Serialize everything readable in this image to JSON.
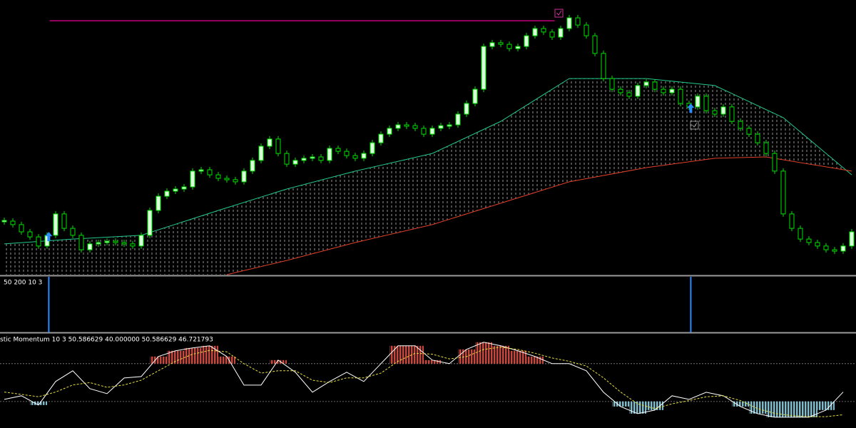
{
  "chart_data": [
    {
      "type": "candlestick",
      "values": [
        20,
        18.7,
        16,
        14.1,
        10.7,
        14.7,
        22.7,
        17.3,
        14.7,
        9.3,
        11.5,
        12,
        12.5,
        12,
        11.5,
        10.7,
        14.7,
        24,
        29.3,
        31.2,
        32,
        32.8,
        38.7,
        39.2,
        37.3,
        36,
        35.5,
        34.7,
        38.7,
        42.7,
        48,
        50.7,
        45.3,
        41.3,
        42.7,
        43.5,
        44,
        42.7,
        47.2,
        46.1,
        44.5,
        43.5,
        45.3,
        49.3,
        52.5,
        54.7,
        56,
        55.7,
        54.7,
        52.5,
        54.7,
        55.7,
        56,
        60,
        64,
        69.3,
        85.3,
        86.7,
        86.1,
        84.5,
        85.3,
        89.3,
        92,
        90.7,
        88.8,
        92,
        96,
        93.3,
        89.3,
        82.7,
        73.3,
        69.3,
        68,
        66.7,
        70.7,
        72,
        69.3,
        68,
        69.3,
        64,
        62.7,
        66.7,
        61.3,
        60,
        62.7,
        57.3,
        54.7,
        52.5,
        49.3,
        45.3,
        38.7,
        22.7,
        17.3,
        13.3,
        12,
        10.7,
        9.3,
        8.8,
        10.7,
        16
      ],
      "up_color": "#d8ffd8",
      "down_color": "#00e000",
      "ylim": [
        0,
        100
      ],
      "lines": [
        {
          "color": "#22c88a",
          "x": [
            0,
            8,
            16,
            25,
            33,
            41,
            50,
            58,
            66,
            75,
            83,
            91,
            99
          ],
          "values": [
            11.5,
            13.3,
            14.7,
            24,
            32,
            38.7,
            45.3,
            57.3,
            73.3,
            73.3,
            70.7,
            58.7,
            37.3
          ]
        },
        {
          "color": "#e0402a",
          "x": [
            26,
            33,
            41,
            50,
            58,
            66,
            75,
            83,
            89,
            99
          ],
          "values": [
            0,
            5.3,
            12,
            18.7,
            26.7,
            34.7,
            40,
            43.5,
            44,
            38.7
          ]
        }
      ],
      "hline": {
        "value": 94.9,
        "x": [
          5.3,
          64.3
        ],
        "color": "#c0007a"
      },
      "arrows": {
        "x": [
          5.2,
          80.2
        ],
        "values": [
          14.1,
          62.1
        ],
        "color": "#2a8cff"
      }
    },
    {
      "type": "signal",
      "title": "50 200 10 3",
      "x": [
        5.2,
        80.2
      ],
      "color": "#2a8cff"
    },
    {
      "type": "momentum",
      "title": "stic Momentum  10 3 50.586629 40.000000 50.586629 46.721793",
      "ylim": [
        -96,
        100
      ],
      "levels": [
        40,
        -40
      ],
      "upper_color": "#c8463c",
      "lower_color": "#7fbccc",
      "x": [
        0,
        2,
        4,
        6,
        8,
        10,
        12,
        14,
        16,
        18,
        20,
        22,
        24,
        26,
        28,
        30,
        32,
        34,
        36,
        38,
        40,
        42,
        44,
        46,
        48,
        50,
        52,
        54,
        56,
        58,
        60,
        62,
        64,
        66,
        68,
        70,
        72,
        74,
        76,
        78,
        80,
        82,
        84,
        86,
        88,
        90,
        92,
        94,
        96,
        98
      ],
      "series": [
        {
          "color": "#ffffff",
          "values": [
            -35.5,
            -27.9,
            -47.5,
            2.3,
            24.9,
            -12.8,
            -23.4,
            9.8,
            12.8,
            55.1,
            67.2,
            73.2,
            77.7,
            55.1,
            -5.3,
            -5.3,
            47.5,
            21.9,
            -20.4,
            2.3,
            21.9,
            2.3,
            40,
            77.7,
            77.7,
            47.5,
            40,
            70.2,
            85.3,
            77.7,
            67.2,
            55.1,
            40,
            40,
            24.9,
            -20.4,
            -50.6,
            -65.7,
            -58.1,
            -27.9,
            -35.5,
            -20.4,
            -27.9,
            -50.6,
            -65.7,
            -73.2,
            -73.2,
            -73.2,
            -58.1,
            -20
          ]
        },
        {
          "color": "#e8e040",
          "dashed": true,
          "values": [
            -20,
            -25,
            -30,
            -20,
            -5,
            0,
            -10,
            -5,
            5,
            25,
            45,
            60,
            68,
            65,
            40,
            20,
            25,
            25,
            5,
            0,
            10,
            10,
            20,
            45,
            62,
            60,
            50,
            55,
            70,
            75,
            70,
            62,
            52,
            45,
            35,
            10,
            -20,
            -45,
            -55,
            -45,
            -38,
            -30,
            -28,
            -38,
            -55,
            -65,
            -70,
            -72,
            -72,
            -68
          ]
        }
      ]
    }
  ]
}
